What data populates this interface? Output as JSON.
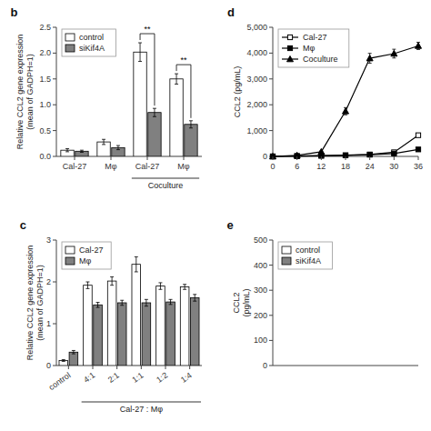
{
  "chart_data": [
    {
      "type": "bar",
      "title": "b",
      "ylabel": "Relative CCL2 gene expression\n(mean of GADPH=1)",
      "categories": [
        "Cal-27",
        "Mφ",
        "Cal-27",
        "Mφ"
      ],
      "series": [
        {
          "name": "control",
          "color": "#ffffff",
          "values": [
            0.12,
            0.28,
            2.02,
            1.5
          ],
          "errors": [
            0.03,
            0.05,
            0.18,
            0.1
          ]
        },
        {
          "name": "siKif4A",
          "color": "#808080",
          "values": [
            0.1,
            0.17,
            0.85,
            0.62
          ],
          "errors": [
            0.02,
            0.04,
            0.08,
            0.07
          ]
        }
      ],
      "ylim": [
        0,
        2.5
      ],
      "yticks": [
        {
          "value": 0,
          "label": "0.0"
        },
        0.5,
        {
          "value": 1,
          "label": "1.0"
        },
        1.5,
        {
          "value": 2,
          "label": "2.0"
        },
        2.5
      ],
      "annotations": [
        "**",
        "**",
        "Coculture"
      ],
      "legend": "upper-left",
      "grid": false
    },
    {
      "type": "bar",
      "title": "c",
      "ylabel": "Relative CCL2 gene expression\n(mean of GADPH=1)",
      "categories": [
        "control",
        "4:1",
        "2:1",
        "1:1",
        "1:2",
        "1:4"
      ],
      "series": [
        {
          "name": "Cal-27",
          "color": "#ffffff",
          "values": [
            0.12,
            1.92,
            2.02,
            2.42,
            1.9,
            1.88
          ],
          "errors": [
            0.02,
            0.08,
            0.1,
            0.18,
            0.08,
            0.06
          ]
        },
        {
          "name": "Mφ",
          "color": "#808080",
          "values": [
            0.32,
            1.45,
            1.5,
            1.5,
            1.52,
            1.62
          ],
          "errors": [
            0.04,
            0.06,
            0.06,
            0.08,
            0.06,
            0.08
          ]
        }
      ],
      "ylim": [
        0,
        3
      ],
      "yticks": [
        0,
        1,
        2,
        3
      ],
      "annotations": [
        "Cal-27 : Mφ"
      ],
      "legend": "upper-left",
      "grid": false
    },
    {
      "type": "line",
      "title": "d",
      "ylabel": "CCL2 (pg/mL)",
      "x": [
        0,
        6,
        12,
        18,
        24,
        30,
        36
      ],
      "series": [
        {
          "name": "Cal-27",
          "color": "#000000",
          "marker": "open-square",
          "values": [
            0,
            15,
            30,
            45,
            75,
            160,
            820
          ],
          "errors": [
            0,
            5,
            6,
            8,
            15,
            25,
            50
          ]
        },
        {
          "name": "Mφ",
          "color": "#000000",
          "marker": "square",
          "values": [
            0,
            10,
            22,
            38,
            65,
            110,
            270
          ],
          "errors": [
            0,
            4,
            6,
            8,
            12,
            20,
            35
          ]
        },
        {
          "name": "Coculture",
          "color": "#000000",
          "marker": "triangle",
          "values": [
            0,
            40,
            180,
            1750,
            3800,
            3980,
            4280
          ],
          "errors": [
            0,
            12,
            35,
            140,
            190,
            170,
            140
          ]
        }
      ],
      "xlim": [
        0,
        36
      ],
      "xticks": [
        0,
        6,
        12,
        18,
        24,
        30,
        36
      ],
      "ylim": [
        0,
        5000
      ],
      "yticks": [
        0,
        {
          "value": 1000,
          "label": "1,000"
        },
        {
          "value": 2000,
          "label": "2,000"
        },
        {
          "value": 3000,
          "label": "3,000"
        },
        {
          "value": 4000,
          "label": "4,000"
        },
        {
          "value": 5000,
          "label": "5,000"
        }
      ],
      "legend": "upper-left",
      "grid": false
    },
    {
      "type": "bar",
      "title": "e",
      "ylabel": "CCL2\n(pg/mL)",
      "categories": [],
      "series": [
        {
          "name": "control",
          "color": "#ffffff",
          "values": []
        },
        {
          "name": "siKif4A",
          "color": "#808080",
          "values": []
        }
      ],
      "ylim": [
        0,
        500
      ],
      "yticks": [
        0,
        100,
        200,
        300,
        400,
        500
      ],
      "tick_labels": "y",
      "legend": "upper-left",
      "grid": false
    }
  ]
}
